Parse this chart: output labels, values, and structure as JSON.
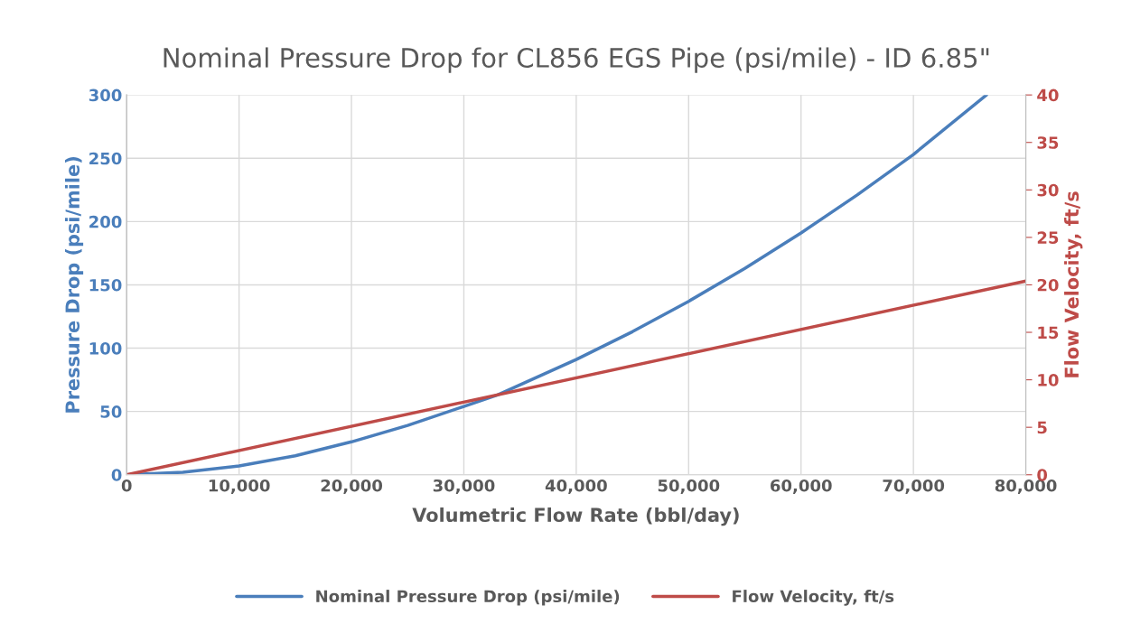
{
  "chart_data": {
    "type": "line",
    "title": "Nominal Pressure Drop for CL856 EGS Pipe (psi/mile) - ID 6.85\"",
    "xlabel": "Volumetric Flow Rate (bbl/day)",
    "ylabel": "Pressure Drop (psi/mile)",
    "y2label": "Flow Velocity, ft/s",
    "series": [
      {
        "name": "Nominal Pressure Drop (psi/mile)",
        "color": "#4a7ebb",
        "x": [
          0,
          5000,
          10000,
          15000,
          20000,
          25000,
          30000,
          33000,
          40000,
          45000,
          50000,
          55000,
          60000,
          65000,
          70000,
          76500
        ],
        "values": [
          0,
          2,
          7,
          15,
          26,
          39,
          54,
          63,
          91,
          113,
          137,
          163,
          191,
          221,
          253,
          300
        ]
      },
      {
        "name": "Flow Velocity, ft/s",
        "color": "#be4b48",
        "axis": "y2",
        "x": [
          0,
          80000
        ],
        "values": [
          0,
          20.4
        ]
      }
    ],
    "xlim": [
      0,
      80000
    ],
    "xticks": [
      {
        "value": 0,
        "label": "0"
      },
      {
        "value": 10000,
        "label": "10,000"
      },
      {
        "value": 20000,
        "label": "20,000"
      },
      {
        "value": 30000,
        "label": "30,000"
      },
      {
        "value": 40000,
        "label": "40,000"
      },
      {
        "value": 50000,
        "label": "50,000"
      },
      {
        "value": 60000,
        "label": "60,000"
      },
      {
        "value": 70000,
        "label": "70,000"
      },
      {
        "value": 80000,
        "label": "80,000"
      }
    ],
    "ylim": [
      0,
      300
    ],
    "yticks": [
      0,
      50,
      100,
      150,
      200,
      250,
      300
    ],
    "y2lim": [
      0,
      40
    ],
    "y2ticks": [
      0,
      5,
      10,
      15,
      20,
      25,
      30,
      35,
      40
    ],
    "grid": true,
    "legend": "bottom",
    "marker": "none",
    "line_style": "solid"
  }
}
